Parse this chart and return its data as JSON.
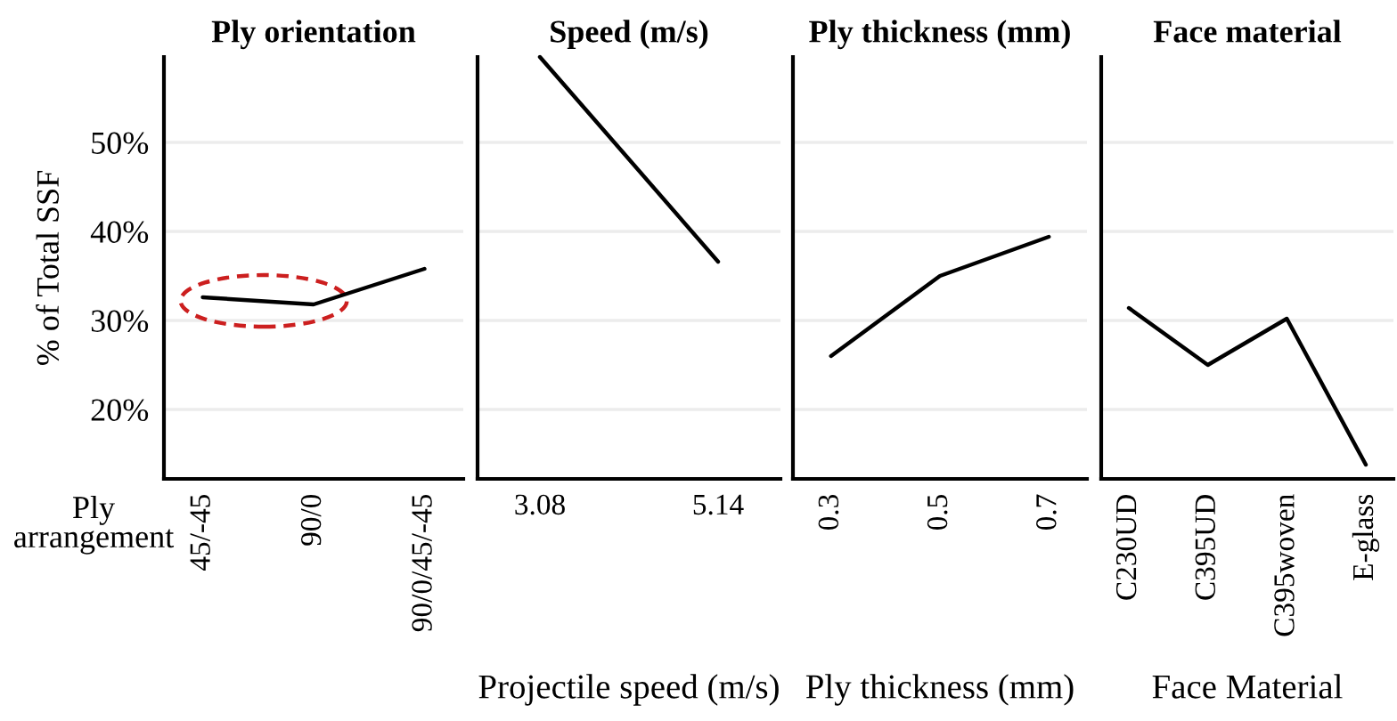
{
  "chart_data": [
    {
      "type": "line",
      "title": "Ply orientation",
      "xlabel": "Ply arrangement",
      "ylabel": "% of Total SSF",
      "categories": [
        "45/-45",
        "90/0",
        "90/0/45/-45"
      ],
      "series": [
        {
          "color": "#000000",
          "values": [
            32.6,
            31.8,
            35.8
          ]
        }
      ],
      "ylim": [
        12.2,
        59.6
      ],
      "yticks": [
        {
          "value": 20,
          "label": "20%"
        },
        {
          "value": 30,
          "label": "30%"
        },
        {
          "value": 40,
          "label": "40%"
        },
        {
          "value": 50,
          "label": "50%"
        }
      ],
      "grid": "y"
    },
    {
      "type": "line",
      "title": "Speed (m/s)",
      "xlabel": "Projectile speed (m/s)",
      "categories": [
        "3.08",
        "5.14"
      ],
      "series": [
        {
          "color": "#000000",
          "values": [
            59.6,
            36.6
          ]
        }
      ],
      "ylim": [
        12.2,
        59.6
      ],
      "yticks": [
        {
          "value": 20,
          "label": null
        },
        {
          "value": 30,
          "label": null
        },
        {
          "value": 40,
          "label": null
        },
        {
          "value": 50,
          "label": null
        }
      ],
      "grid": "y",
      "tick_labels": "x"
    },
    {
      "type": "line",
      "title": "Ply thickness (mm)",
      "xlabel": "Ply thickness (mm)",
      "categories": [
        "0.3",
        "0.5",
        "0.7"
      ],
      "series": [
        {
          "color": "#000000",
          "values": [
            26.0,
            35.0,
            39.4
          ]
        }
      ],
      "ylim": [
        12.2,
        59.6
      ],
      "yticks": [
        {
          "value": 20,
          "label": null
        },
        {
          "value": 30,
          "label": null
        },
        {
          "value": 40,
          "label": null
        },
        {
          "value": 50,
          "label": null
        }
      ],
      "grid": "y",
      "tick_labels": "x"
    },
    {
      "type": "line",
      "title": "Face material",
      "xlabel": "Face Material",
      "categories": [
        "C230UD",
        "C395UD",
        "C395woven",
        "E-glass"
      ],
      "series": [
        {
          "color": "#000000",
          "values": [
            31.4,
            25.0,
            30.2,
            13.8
          ]
        }
      ],
      "ylim": [
        12.2,
        59.6
      ],
      "yticks": [
        {
          "value": 20,
          "label": null
        },
        {
          "value": 30,
          "label": null
        },
        {
          "value": 40,
          "label": null
        },
        {
          "value": 50,
          "label": null
        }
      ],
      "grid": "y",
      "tick_labels": "x"
    }
  ]
}
